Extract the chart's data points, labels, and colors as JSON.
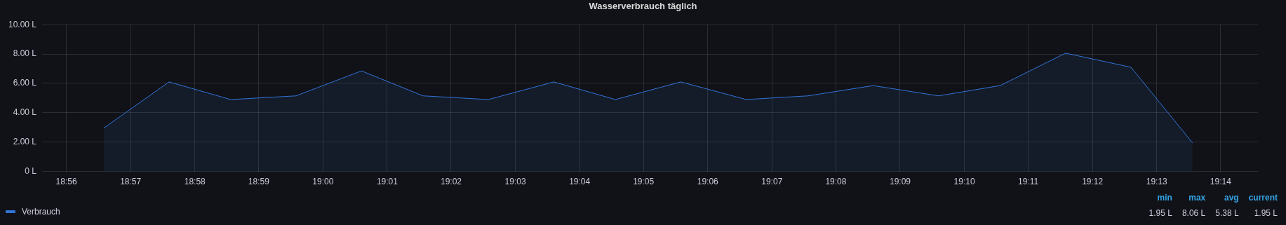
{
  "chart_data": {
    "type": "area",
    "title": "Wasserverbrauch täglich",
    "x": [
      18.943,
      18.96,
      18.976,
      18.993,
      19.01,
      19.026,
      19.043,
      19.06,
      19.076,
      19.093,
      19.11,
      19.126,
      19.143,
      19.16,
      19.176,
      19.193,
      19.21,
      19.226
    ],
    "series": [
      {
        "name": "Verbrauch",
        "color": "#3274d9",
        "values": [
          2.95,
          6.1,
          4.9,
          5.15,
          6.85,
          5.15,
          4.9,
          6.1,
          4.9,
          6.1,
          4.9,
          5.15,
          5.85,
          5.15,
          5.85,
          8.06,
          7.1,
          1.95
        ]
      }
    ],
    "xlim": [
      18.927,
      19.243
    ],
    "xticks": [
      {
        "value": 18.9333,
        "label": "18:56"
      },
      {
        "value": 18.95,
        "label": "18:57"
      },
      {
        "value": 18.9667,
        "label": "18:58"
      },
      {
        "value": 18.9833,
        "label": "18:59"
      },
      {
        "value": 19.0,
        "label": "19:00"
      },
      {
        "value": 19.0167,
        "label": "19:01"
      },
      {
        "value": 19.0333,
        "label": "19:02"
      },
      {
        "value": 19.05,
        "label": "19:03"
      },
      {
        "value": 19.0667,
        "label": "19:04"
      },
      {
        "value": 19.0833,
        "label": "19:05"
      },
      {
        "value": 19.1,
        "label": "19:06"
      },
      {
        "value": 19.1167,
        "label": "19:07"
      },
      {
        "value": 19.1333,
        "label": "19:08"
      },
      {
        "value": 19.15,
        "label": "19:09"
      },
      {
        "value": 19.1667,
        "label": "19:10"
      },
      {
        "value": 19.1833,
        "label": "19:11"
      },
      {
        "value": 19.2,
        "label": "19:12"
      },
      {
        "value": 19.2167,
        "label": "19:13"
      },
      {
        "value": 19.2333,
        "label": "19:14"
      }
    ],
    "ylim": [
      0,
      10
    ],
    "yticks": [
      {
        "value": 0,
        "label": "0 L"
      },
      {
        "value": 2,
        "label": "2.00 L"
      },
      {
        "value": 4,
        "label": "4.00 L"
      },
      {
        "value": 6,
        "label": "6.00 L"
      },
      {
        "value": 8,
        "label": "8.00 L"
      },
      {
        "value": 10,
        "label": "10.00 L"
      }
    ],
    "grid": true,
    "legend": "bottom left",
    "marker": "none",
    "line_style": "solid",
    "annotations": [
      "min",
      "max",
      "avg",
      "current",
      "1.95 L",
      "8.06 L",
      "5.38 L",
      "1.95 L"
    ]
  }
}
